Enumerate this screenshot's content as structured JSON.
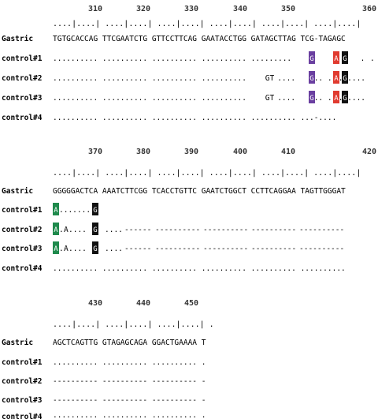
{
  "colors": {
    "purple": "#6a3fa0",
    "red": "#e03a2f",
    "black": "#111111",
    "green": "#1f8a4c",
    "mismatch_text": "#d4542a"
  },
  "blocks": [
    {
      "numbers": [
        "310",
        "320",
        "330",
        "340",
        "350",
        "360"
      ],
      "ruler": "....|....| ....|....| ....|....| ....|....| ....|....| ....|....|",
      "rows": [
        {
          "label": "Gastric",
          "seq": "TGTGCACCAG TTCGAATCTG GTTCCTTCAG GAATACCTGG GATAGCTTAG TCG-TAGAGC",
          "red": ""
        },
        {
          "label": "control#1",
          "seq": "......... ........ .......... .......... ......... .. .. .A",
          "red": "A"
        },
        {
          "label": "control#2",
          "seq": ".......... .......... .......... ..........GT... ...... ",
          "red": "GT"
        },
        {
          "label": "control#3",
          "seq": ".......... .......... .......... ..........GT... ......",
          "red": "GT"
        },
        {
          "label": "control#4",
          "seq": ".......... .......... .......... .......... .......... ...-....",
          "red": ""
        }
      ],
      "highlights": [
        {
          "row": 1,
          "letter": "G",
          "color": "purple"
        },
        {
          "row": 1,
          "letter": "A",
          "color": "red"
        },
        {
          "row": 1,
          "letter": "G",
          "color": "black"
        },
        {
          "row": 2,
          "letter": "G",
          "color": "purple"
        },
        {
          "row": 2,
          "letter": "A",
          "color": "red"
        },
        {
          "row": 2,
          "letter": "G",
          "color": "black"
        },
        {
          "row": 3,
          "letter": "G",
          "color": "purple"
        },
        {
          "row": 3,
          "letter": "A",
          "color": "red"
        },
        {
          "row": 3,
          "letter": "G",
          "color": "black"
        }
      ]
    },
    {
      "numbers": [
        "370",
        "380",
        "390",
        "400",
        "410",
        "420"
      ],
      "ruler": "....|....| ....|....| ....|....| ....|....| ....|....| ....|....|",
      "rows": [
        {
          "label": "Gastric",
          "seq": "GGGGGACTCA AAATCTTCGG TCACCTGTTC GAATCTGGCT CCTTCAGGAA TAGTTGGGAT",
          "red": ""
        },
        {
          "label": "control#1",
          "seq": " ........ ",
          "red": ""
        },
        {
          "label": "control#2",
          "seq": " .A.... ....------ ---------- ---------- ---------- ----------",
          "red": "A"
        },
        {
          "label": "control#3",
          "seq": " .A.... ....------ ---------- ---------- ---------- ----------",
          "red": "A"
        },
        {
          "label": "control#4",
          "seq": ".......... .......... .......... .......... .......... ..........",
          "red": ""
        }
      ],
      "highlights": [
        {
          "row": 1,
          "letter": "A",
          "color": "green"
        },
        {
          "row": 1,
          "letter": "G",
          "color": "black"
        },
        {
          "row": 2,
          "letter": "A",
          "color": "green"
        },
        {
          "row": 2,
          "letter": "G",
          "color": "black"
        },
        {
          "row": 3,
          "letter": "A",
          "color": "green"
        },
        {
          "row": 3,
          "letter": "G",
          "color": "black"
        }
      ]
    },
    {
      "numbers": [
        "430",
        "440",
        "450"
      ],
      "ruler": "....|....| ....|....| ....|....| .",
      "rows": [
        {
          "label": "Gastric",
          "seq": "AGCTCAGTTG GTAGAGCAGA GGACTGAAAA T",
          "red": ""
        },
        {
          "label": "control#1",
          "seq": ".......... .......... .......... .",
          "red": ""
        },
        {
          "label": "control#2",
          "seq": "---------- ---------- ---------- -",
          "red": "dash"
        },
        {
          "label": "control#3",
          "seq": "---------- ---------- ---------- -",
          "red": "dash"
        },
        {
          "label": "control#4",
          "seq": ".......... .......... .......... .",
          "red": ""
        }
      ],
      "highlights": []
    }
  ]
}
